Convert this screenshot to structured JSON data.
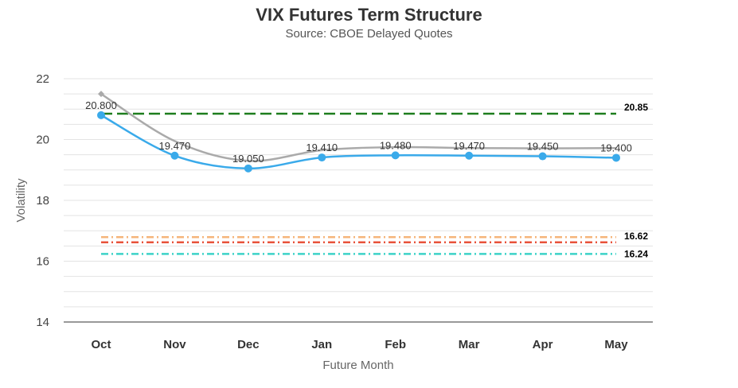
{
  "chart_data": {
    "type": "line",
    "title": "VIX Futures Term Structure",
    "subtitle": "Source: CBOE Delayed Quotes",
    "xlabel": "Future Month",
    "ylabel": "Volatility",
    "categories": [
      "Oct",
      "Nov",
      "Dec",
      "Jan",
      "Feb",
      "Mar",
      "Apr",
      "May"
    ],
    "ylim": [
      14,
      22
    ],
    "yticks": [
      14,
      16,
      18,
      20,
      22
    ],
    "grid": true,
    "series": [
      {
        "values": [
          20.8,
          19.47,
          19.05,
          19.41,
          19.48,
          19.47,
          19.45,
          19.4
        ],
        "labels": [
          "20.800",
          "19.470",
          "19.050",
          "19.410",
          "19.480",
          "19.470",
          "19.450",
          "19.400"
        ],
        "color": "#3aaaea",
        "markers": true
      },
      {
        "values": [
          21.5,
          19.95,
          19.3,
          19.65,
          19.75,
          19.72,
          19.71,
          19.72
        ],
        "color": "#aaaaaa",
        "markers": false
      }
    ],
    "reference_lines": [
      {
        "value": 20.85,
        "label": "20.85",
        "color": "#1e7d1e",
        "style": "dashed"
      },
      {
        "value": 16.79,
        "label": "",
        "color": "#f5b57a",
        "style": "dashdot"
      },
      {
        "value": 16.62,
        "label": "16.62",
        "color": "#e8533b",
        "style": "dashdot"
      },
      {
        "value": 16.24,
        "label": "16.24",
        "color": "#3cd2c8",
        "style": "dashdot"
      }
    ]
  }
}
